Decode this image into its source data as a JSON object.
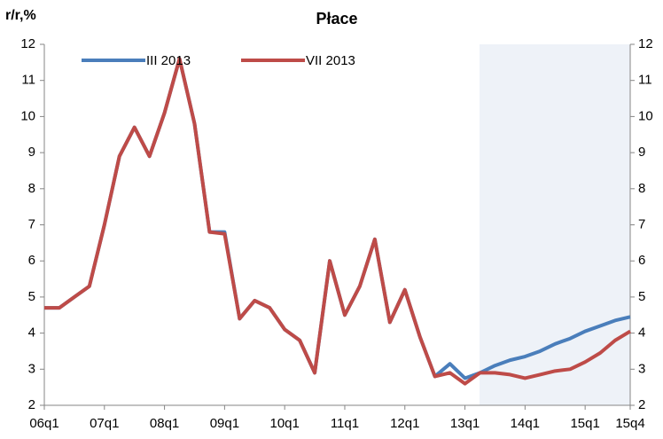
{
  "chart_data": {
    "type": "line",
    "title": "Płace",
    "ylabel": "r/r,%",
    "categories": [
      "06q1",
      null,
      null,
      null,
      "07q1",
      null,
      null,
      null,
      "08q1",
      null,
      null,
      null,
      "09q1",
      null,
      null,
      null,
      "10q1",
      null,
      null,
      null,
      "11q1",
      null,
      null,
      null,
      "12q1",
      null,
      null,
      null,
      "13q1",
      null,
      null,
      null,
      "14q1",
      null,
      null,
      null,
      "15q1",
      null,
      null,
      "15q4"
    ],
    "series": [
      {
        "name": "III 2013",
        "color": "#4a7ebb",
        "values": [
          4.7,
          4.7,
          5.0,
          5.3,
          7.0,
          8.9,
          9.7,
          8.9,
          10.1,
          11.6,
          9.8,
          6.8,
          6.8,
          4.4,
          4.9,
          4.7,
          4.1,
          3.8,
          2.9,
          6.0,
          4.5,
          5.3,
          6.6,
          4.3,
          5.2,
          3.9,
          2.8,
          3.15,
          2.75,
          2.9,
          3.1,
          3.25,
          3.35,
          3.5,
          3.7,
          3.85,
          4.05,
          4.2,
          4.35,
          4.45
        ]
      },
      {
        "name": "VII 2013",
        "color": "#be4b48",
        "values": [
          4.7,
          4.7,
          5.0,
          5.3,
          7.0,
          8.9,
          9.7,
          8.9,
          10.1,
          11.6,
          9.8,
          6.8,
          6.75,
          4.4,
          4.9,
          4.7,
          4.1,
          3.8,
          2.9,
          6.0,
          4.5,
          5.3,
          6.6,
          4.3,
          5.2,
          3.9,
          2.8,
          2.9,
          2.6,
          2.9,
          2.9,
          2.85,
          2.75,
          2.85,
          2.95,
          3.0,
          3.2,
          3.45,
          3.8,
          4.05
        ]
      }
    ],
    "ylim": [
      2,
      12
    ],
    "yticks": [
      2,
      3,
      4,
      5,
      6,
      7,
      8,
      9,
      10,
      11,
      12
    ],
    "y2lim": [
      2,
      12
    ],
    "y2ticks": [
      2,
      3,
      4,
      5,
      6,
      7,
      8,
      9,
      10,
      11,
      12
    ],
    "grid": false,
    "legend": "top"
  }
}
